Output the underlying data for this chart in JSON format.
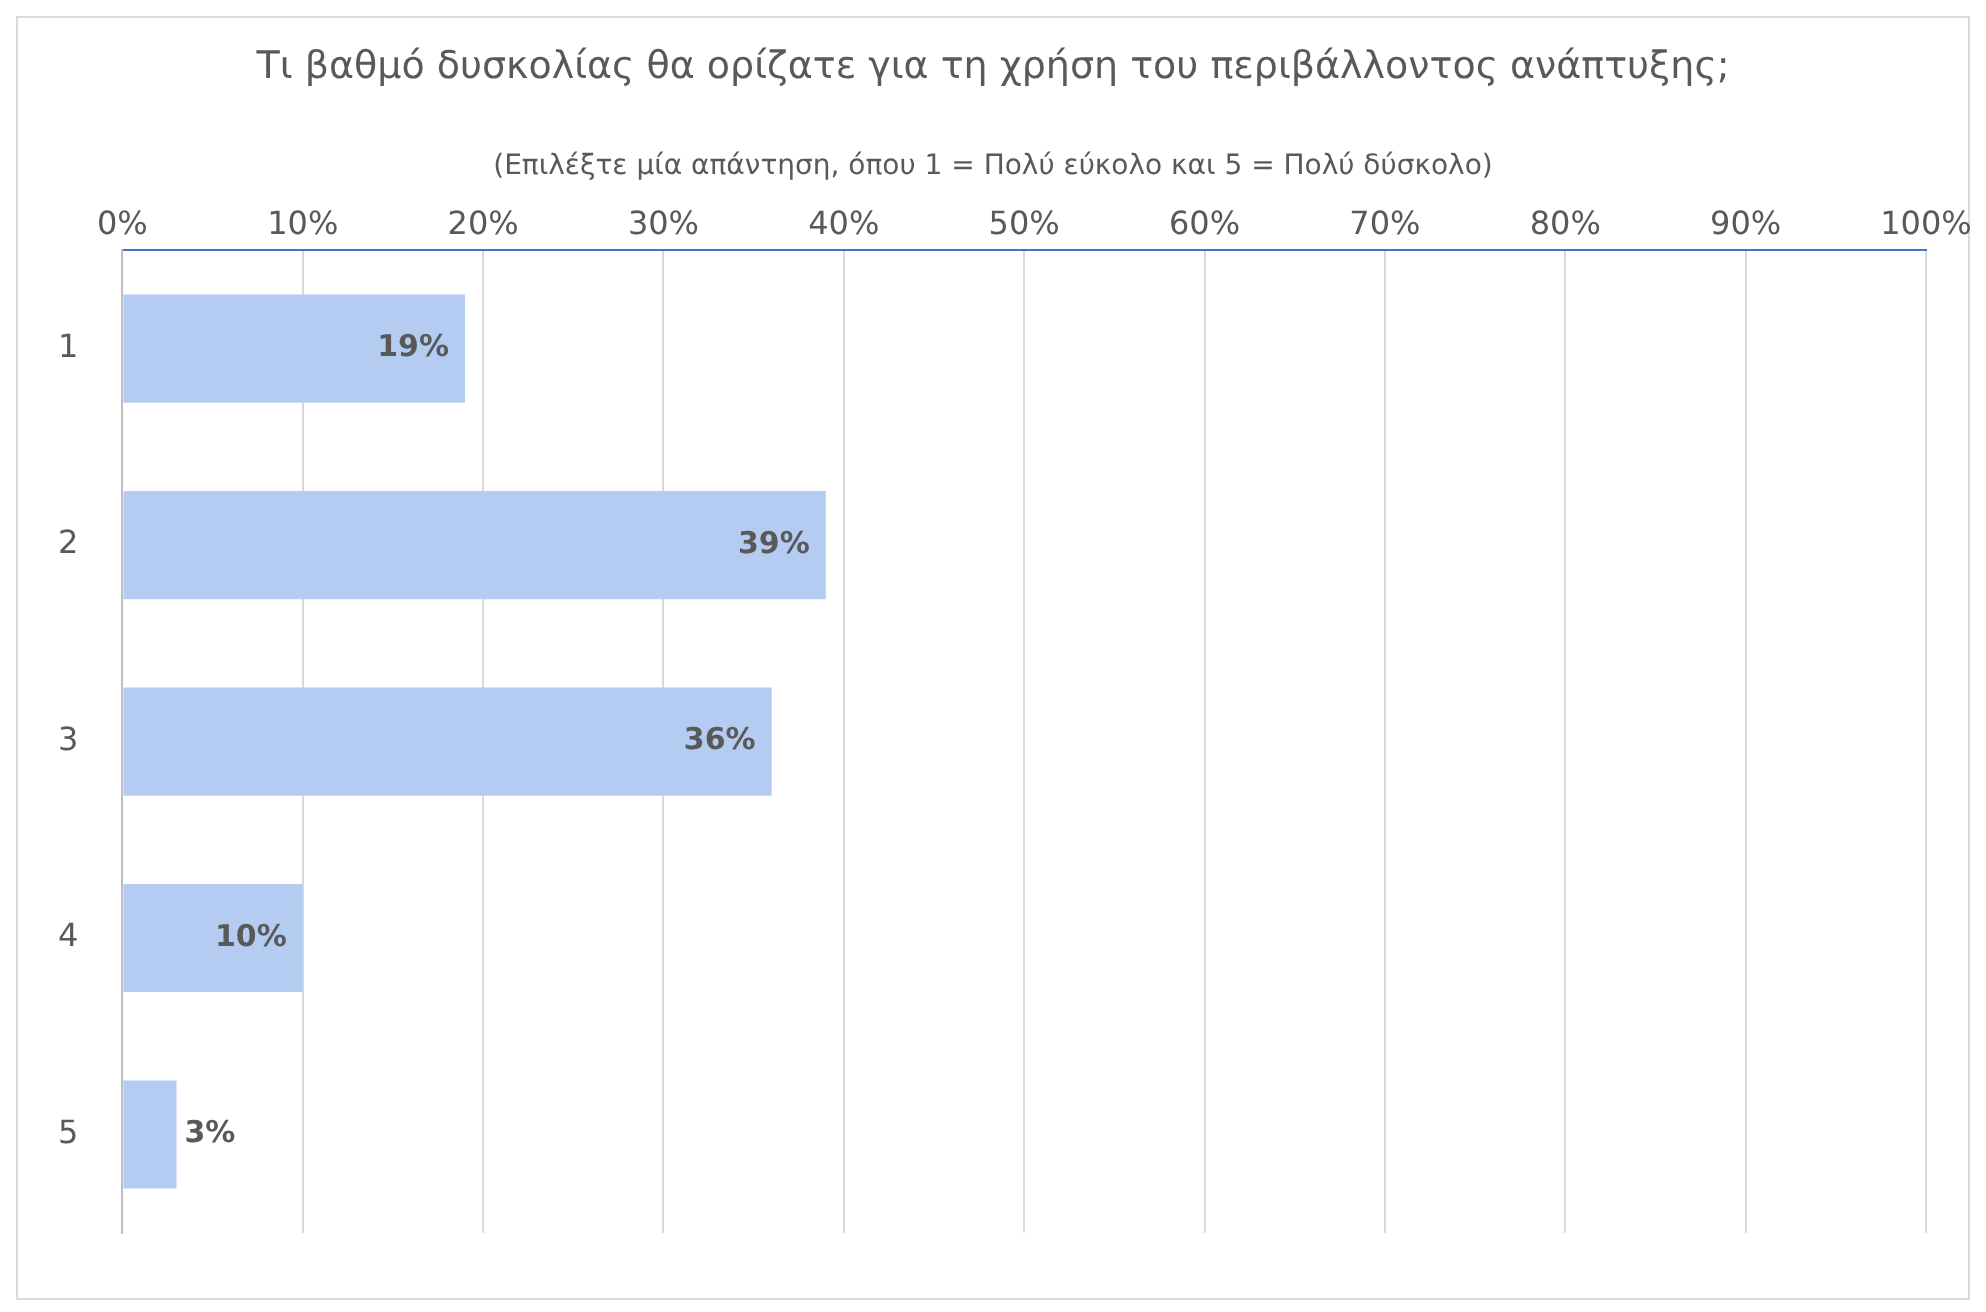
{
  "chart_data": {
    "type": "bar",
    "orientation": "horizontal",
    "title": "Τι βαθμό δυσκολίας θα ορίζατε για τη χρήση του περιβάλλοντος ανάπτυξης;",
    "subtitle": "(Επιλέξτε μία απάντηση, όπου 1 = Πολύ εύκολο και 5 = Πολύ δύσκολο)",
    "categories": [
      "1",
      "2",
      "3",
      "4",
      "5"
    ],
    "values": [
      19,
      39,
      36,
      10,
      3
    ],
    "value_labels": [
      "19%",
      "39%",
      "36%",
      "10%",
      "3%"
    ],
    "color": "#b4ccf2",
    "xlim": [
      0,
      100
    ],
    "xticks": [
      {
        "value": 0,
        "label": "0%"
      },
      {
        "value": 10,
        "label": "10%"
      },
      {
        "value": 20,
        "label": "20%"
      },
      {
        "value": 30,
        "label": "30%"
      },
      {
        "value": 40,
        "label": "40%"
      },
      {
        "value": 50,
        "label": "50%"
      },
      {
        "value": 60,
        "label": "60%"
      },
      {
        "value": 70,
        "label": "70%"
      },
      {
        "value": 80,
        "label": "80%"
      },
      {
        "value": 90,
        "label": "90%"
      },
      {
        "value": 100,
        "label": "100%"
      }
    ],
    "grid": "x",
    "legend": false
  }
}
